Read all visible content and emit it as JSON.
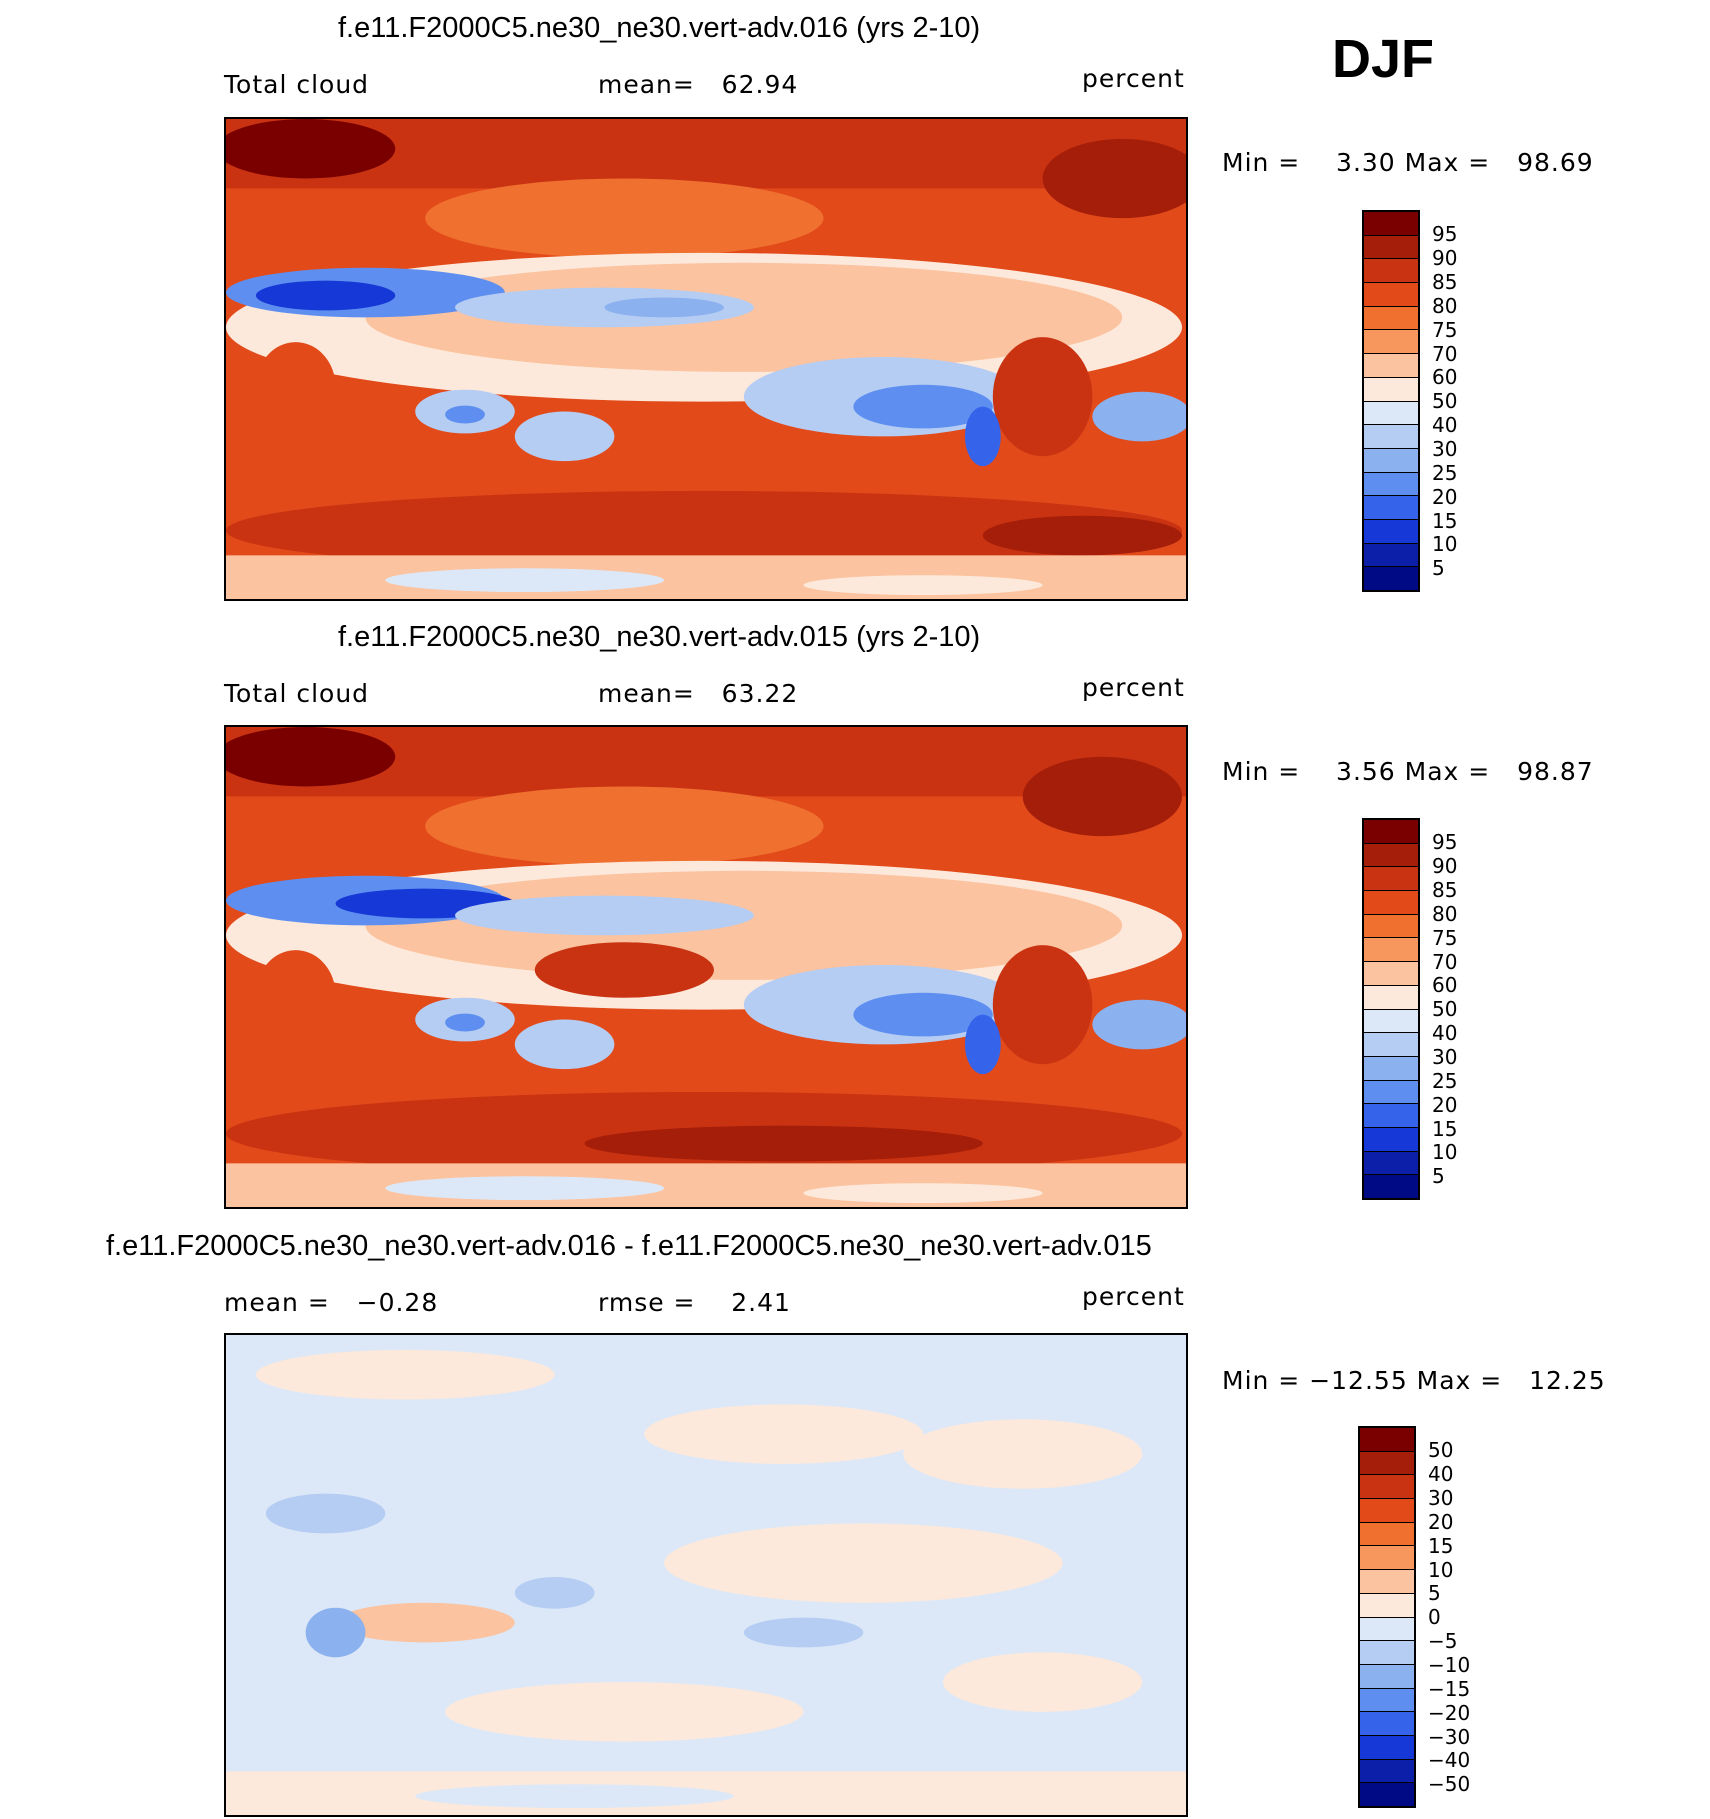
{
  "season": "DJF",
  "panels": [
    {
      "title": "f.e11.F2000C5.ne30_ne30.vert-adv.016 (yrs 2-10)",
      "left_label": "Total cloud",
      "center_label": "mean=   62.94",
      "right_label": "percent",
      "minmax": "Min =    3.30 Max =   98.69",
      "levels": [
        "95",
        "90",
        "85",
        "80",
        "75",
        "70",
        "60",
        "50",
        "40",
        "30",
        "25",
        "20",
        "15",
        "10",
        "5"
      ]
    },
    {
      "title": "f.e11.F2000C5.ne30_ne30.vert-adv.015 (yrs 2-10)",
      "left_label": "Total cloud",
      "center_label": "mean=   63.22",
      "right_label": "percent",
      "minmax": "Min =    3.56 Max =   98.87",
      "levels": [
        "95",
        "90",
        "85",
        "80",
        "75",
        "70",
        "60",
        "50",
        "40",
        "30",
        "25",
        "20",
        "15",
        "10",
        "5"
      ]
    },
    {
      "title": "f.e11.F2000C5.ne30_ne30.vert-adv.016 - f.e11.F2000C5.ne30_ne30.vert-adv.015",
      "left_label": "mean =   −0.28",
      "center_label": "rmse =    2.41",
      "right_label": "percent",
      "minmax": "Min = −12.55 Max =   12.25",
      "levels": [
        "50",
        "40",
        "30",
        "20",
        "15",
        "10",
        "5",
        "0",
        "−5",
        "−10",
        "−15",
        "−20",
        "−30",
        "−40",
        "−50"
      ]
    }
  ],
  "colors": {
    "scale": [
      "#7a0000",
      "#a51e0a",
      "#c93312",
      "#e24a1a",
      "#f0702f",
      "#f7975e",
      "#fbc3a0",
      "#fde9db",
      "#dce8f7",
      "#b5cdf3",
      "#8cb1ef",
      "#5e8ff0",
      "#3563ea",
      "#1538d6",
      "#0c1fa8",
      "#000a85"
    ]
  },
  "chart_data": [
    {
      "type": "heatmap",
      "title": "f.e11.F2000C5.ne30_ne30.vert-adv.016 (yrs 2-10)",
      "variable": "Total cloud",
      "units": "percent",
      "mean": 62.94,
      "min": 3.3,
      "max": 98.69,
      "contour_levels": [
        5,
        10,
        15,
        20,
        25,
        30,
        40,
        50,
        60,
        70,
        75,
        80,
        85,
        90,
        95
      ]
    },
    {
      "type": "heatmap",
      "title": "f.e11.F2000C5.ne30_ne30.vert-adv.015 (yrs 2-10)",
      "variable": "Total cloud",
      "units": "percent",
      "mean": 63.22,
      "min": 3.56,
      "max": 98.87,
      "contour_levels": [
        5,
        10,
        15,
        20,
        25,
        30,
        40,
        50,
        60,
        70,
        75,
        80,
        85,
        90,
        95
      ]
    },
    {
      "type": "heatmap",
      "title": "f.e11.F2000C5.ne30_ne30.vert-adv.016 - f.e11.F2000C5.ne30_ne30.vert-adv.015",
      "units": "percent",
      "mean": -0.28,
      "rmse": 2.41,
      "min": -12.55,
      "max": 12.25,
      "contour_levels": [
        -50,
        -40,
        -30,
        -20,
        -15,
        -10,
        -5,
        0,
        5,
        10,
        15,
        20,
        30,
        40,
        50
      ]
    }
  ]
}
